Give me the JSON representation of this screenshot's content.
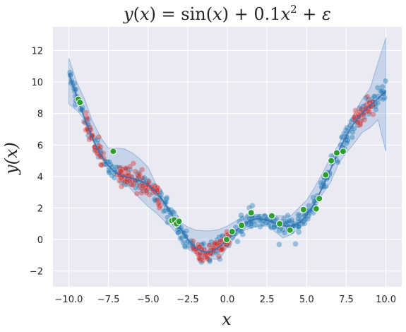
{
  "chart_data": {
    "type": "scatter",
    "title": "y(x) = sin(x) + 0.1x² + ε",
    "xlabel": "x",
    "ylabel": "y(x)",
    "xlim": [
      -11.0,
      11.0
    ],
    "ylim": [
      -3.0,
      13.5
    ],
    "x_ticks": [
      -10.0,
      -7.5,
      -5.0,
      -2.5,
      0.0,
      2.5,
      5.0,
      7.5,
      10.0
    ],
    "x_tick_labels": [
      "−10.0",
      "−7.5",
      "−5.0",
      "−2.5",
      "0.0",
      "2.5",
      "5.0",
      "7.5",
      "10.0"
    ],
    "y_ticks": [
      -2,
      0,
      2,
      4,
      6,
      8,
      10,
      12
    ],
    "y_tick_labels": [
      "−2",
      "0",
      "2",
      "4",
      "6",
      "8",
      "10",
      "12"
    ],
    "grid": true,
    "background": "#eaeaf2",
    "colors": {
      "blue_points": "#1f77b4",
      "red_points": "#d62728",
      "green_points": "#2ca02c",
      "mean_line": "#3a6fb0",
      "band": "#4e84c4"
    },
    "series": [
      {
        "role": "points",
        "color": "blue",
        "domain": [
          -10,
          10
        ],
        "n_points": 500,
        "function": "sin(x) + 0.1*x^2",
        "noise_sd": 0.3
      },
      {
        "role": "points",
        "color": "red",
        "ranges": [
          [
            -9.0,
            -7.8
          ],
          [
            -7.0,
            -4.2
          ],
          [
            -2.2,
            0.2
          ],
          [
            8.0,
            9.2
          ]
        ],
        "n_points": 200,
        "function": "sin(x) + 0.1*x^2",
        "noise_sd": 0.35
      },
      {
        "role": "points",
        "color": "green",
        "x": [
          -9.4,
          -9.3,
          -7.2,
          -3.5,
          -3.35,
          -3.2,
          -3.05,
          -0.05,
          0.3,
          0.9,
          1.5,
          2.8,
          3.3,
          3.95,
          4.8,
          5.6,
          5.8,
          6.2,
          6.55,
          6.9,
          7.3
        ],
        "y": [
          8.9,
          8.7,
          5.6,
          1.2,
          1.25,
          1.0,
          1.15,
          0.0,
          0.5,
          0.9,
          1.7,
          1.5,
          1.0,
          0.6,
          1.9,
          1.95,
          2.6,
          4.1,
          5.0,
          5.5,
          5.6
        ]
      },
      {
        "role": "mean_line",
        "domain": [
          -10,
          10
        ],
        "function": "sin(x) + 0.1*x^2"
      },
      {
        "role": "uncertainty_band",
        "x": [
          -10,
          -9.5,
          -9,
          -8.5,
          -8,
          -7.5,
          -7,
          -6.5,
          -6,
          -5.5,
          -5,
          -4.5,
          -4,
          -3.5,
          -3,
          -2.5,
          -2,
          -1.5,
          -1,
          -0.5,
          0,
          0.5,
          1,
          1.5,
          2,
          2.5,
          3,
          3.5,
          4,
          4.5,
          5,
          5.5,
          6,
          6.5,
          7,
          7.5,
          8,
          8.5,
          9,
          9.5,
          10
        ],
        "upper": [
          11.5,
          10.0,
          8.9,
          7.5,
          6.5,
          5.8,
          5.8,
          5.75,
          5.5,
          5.1,
          4.6,
          3.5,
          2.3,
          1.7,
          1.1,
          0.8,
          0.6,
          0.55,
          0.55,
          0.65,
          0.85,
          1.15,
          1.45,
          1.6,
          1.6,
          1.55,
          1.5,
          1.5,
          1.5,
          2.0,
          2.5,
          3.3,
          4.2,
          5.2,
          6.0,
          7.0,
          8.0,
          8.9,
          9.6,
          11.2,
          12.8
        ],
        "lower": [
          8.6,
          8.2,
          7.6,
          6.3,
          5.3,
          4.9,
          4.4,
          3.7,
          3.1,
          2.6,
          2.1,
          1.7,
          1.2,
          0.75,
          0.1,
          -0.6,
          -0.9,
          -1.2,
          -1.25,
          -1.25,
          -0.5,
          0.2,
          0.55,
          0.75,
          0.85,
          0.85,
          0.5,
          0.1,
          0.3,
          0.7,
          1.2,
          1.9,
          2.9,
          3.6,
          4.8,
          5.5,
          6.1,
          6.8,
          7.1,
          7.6,
          5.6
        ]
      }
    ]
  }
}
